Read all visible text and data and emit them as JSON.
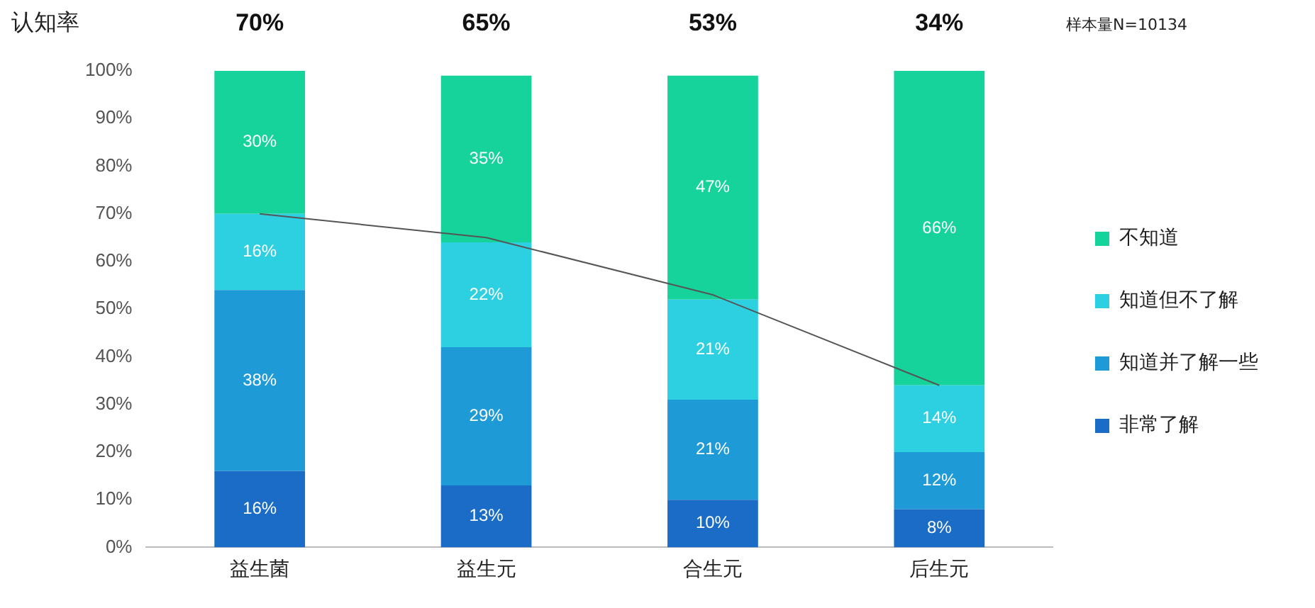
{
  "chart_data": {
    "type": "bar",
    "stacked": true,
    "categories": [
      "益生菌",
      "益生元",
      "合生元",
      "后生元"
    ],
    "series": [
      {
        "name": "非常了解",
        "color": "#1a6cc6",
        "values": [
          16,
          13,
          10,
          8
        ],
        "value_labels": [
          "16%",
          "13%",
          "10%",
          "8%"
        ]
      },
      {
        "name": "知道并了解一些",
        "color": "#1e9bd7",
        "values": [
          38,
          29,
          21,
          12
        ],
        "value_labels": [
          "38%",
          "29%",
          "21%",
          "12%"
        ]
      },
      {
        "name": "知道但不了解",
        "color": "#2cd0e0",
        "values": [
          16,
          22,
          21,
          14
        ],
        "value_labels": [
          "16%",
          "22%",
          "21%",
          "14%"
        ]
      },
      {
        "name": "不知道",
        "color": "#16d39c",
        "values": [
          30,
          35,
          47,
          66
        ],
        "value_labels": [
          "30%",
          "35%",
          "47%",
          "66%"
        ]
      },
      {
        "type": "line",
        "color": "#555555",
        "values": [
          70,
          65,
          53,
          34
        ],
        "value_labels": [
          "70%",
          "65%",
          "53%",
          "34%"
        ]
      }
    ],
    "ylim": [
      0,
      100
    ],
    "yticks": [
      {
        "value": 0,
        "label": "0%"
      },
      {
        "value": 10,
        "label": "10%"
      },
      {
        "value": 20,
        "label": "20%"
      },
      {
        "value": 30,
        "label": "30%"
      },
      {
        "value": 40,
        "label": "40%"
      },
      {
        "value": 50,
        "label": "50%"
      },
      {
        "value": 60,
        "label": "60%"
      },
      {
        "value": 70,
        "label": "70%"
      },
      {
        "value": 80,
        "label": "80%"
      },
      {
        "value": 90,
        "label": "90%"
      },
      {
        "value": 100,
        "label": "100%"
      }
    ],
    "grid": false,
    "legend": "right",
    "annotations": [
      "认知率",
      "样本量N=10134"
    ]
  }
}
